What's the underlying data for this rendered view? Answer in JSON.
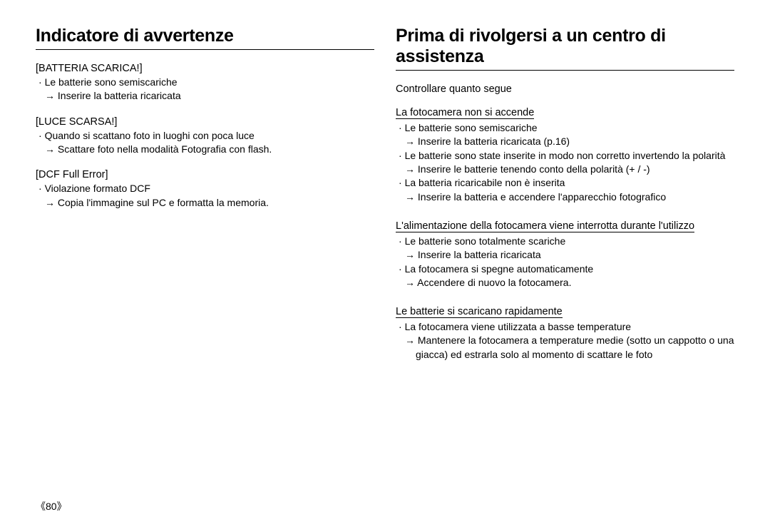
{
  "left": {
    "title": "Indicatore di avvertenze",
    "sections": [
      {
        "label": "[BATTERIA SCARICA!]",
        "items": [
          {
            "bullet": "Le batterie sono semiscariche",
            "arrow": "Inserire la batteria ricaricata"
          }
        ]
      },
      {
        "label": "[LUCE SCARSA!]",
        "items": [
          {
            "bullet": "Quando si scattano foto in luoghi con poca luce",
            "arrow": "Scattare foto nella modalità Fotografia con flash."
          }
        ]
      },
      {
        "label": "[DCF Full Error]",
        "items": [
          {
            "bullet": "Violazione formato DCF",
            "arrow": "Copia l'immagine sul PC e formatta la memoria."
          }
        ]
      }
    ]
  },
  "right": {
    "title": "Prima di rivolgersi a un centro di assistenza",
    "subheading": "Controllare quanto segue",
    "sections": [
      {
        "sec_title": "La fotocamera non si accende",
        "items": [
          {
            "bullet": "Le batterie sono semiscariche",
            "arrow": "Inserire la batteria ricaricata (p.16)"
          },
          {
            "bullet": "Le batterie sono state inserite in modo non corretto invertendo la polarità",
            "arrow": "Inserire le batterie tenendo conto della polarità (+ / -)"
          },
          {
            "bullet": "La batteria ricaricabile non è inserita",
            "arrow": "Inserire la batteria e accendere l'apparecchio fotografico"
          }
        ]
      },
      {
        "sec_title": "L'alimentazione della fotocamera viene interrotta durante l'utilizzo",
        "items": [
          {
            "bullet": "Le batterie sono totalmente scariche",
            "arrow": "Inserire la batteria ricaricata"
          },
          {
            "bullet": "La fotocamera si spegne automaticamente",
            "arrow": "Accendere di nuovo la fotocamera."
          }
        ]
      },
      {
        "sec_title": "Le batterie si scaricano rapidamente",
        "items": [
          {
            "bullet": "La fotocamera viene utilizzata a basse temperature",
            "arrow": "Mantenere la fotocamera a temperature medie (sotto un cappotto o una",
            "arrow_cont": "giacca) ed estrarla solo al momento di scattare le foto"
          }
        ]
      }
    ]
  },
  "page_number": "《80》"
}
